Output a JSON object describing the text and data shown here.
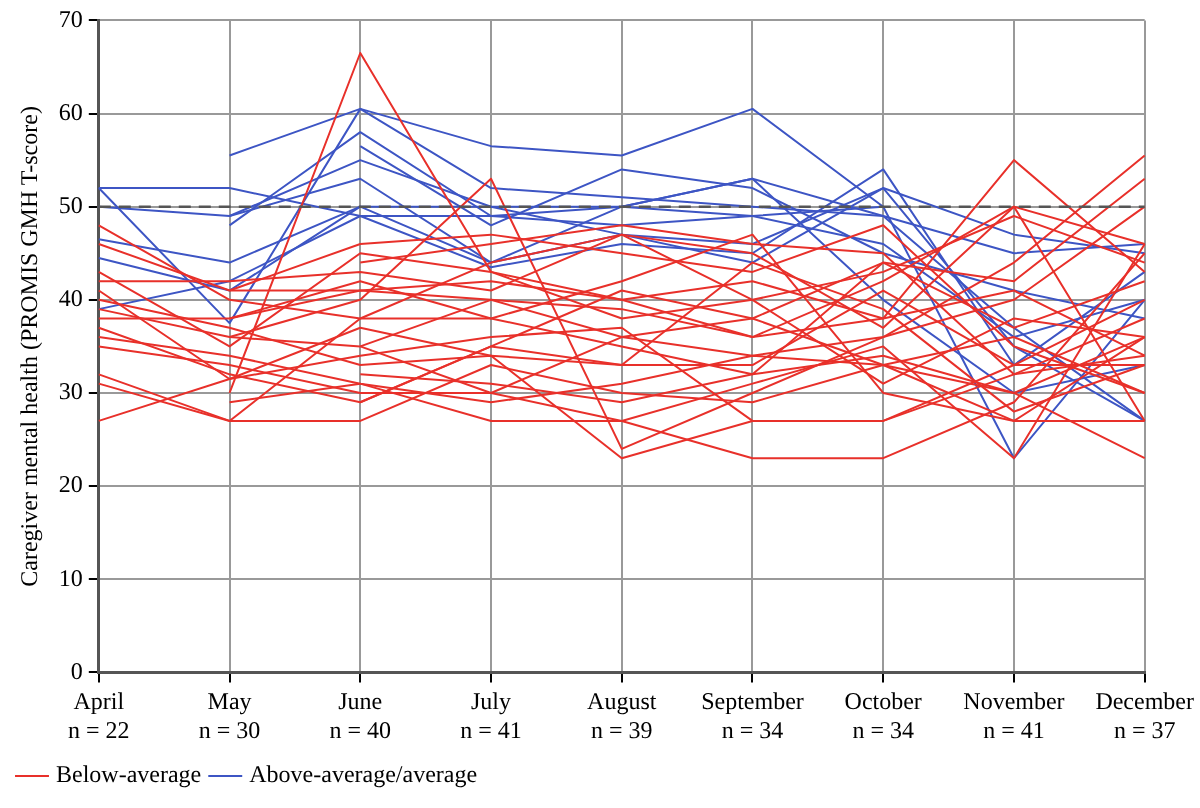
{
  "chart_data": {
    "type": "line",
    "ylabel": "Caregiver mental health (PROMIS GMH T-score)",
    "categories": [
      "April\nn = 22",
      "May\nn = 30",
      "June\nn = 40",
      "July\nn = 41",
      "August\nn = 39",
      "September\nn = 34",
      "October\nn = 34",
      "November\nn = 41",
      "December\nn = 37"
    ],
    "ylim": [
      0,
      70
    ],
    "yticks": [
      0,
      10,
      20,
      30,
      40,
      50,
      60,
      70
    ],
    "grid": true,
    "legend": "bottom left",
    "marker": "none",
    "line_style": "solid",
    "ref_lines": [
      {
        "axis": "y",
        "value": 50,
        "color": "#555555",
        "line_style": "dashed"
      }
    ],
    "series": [
      {
        "name": "Above-average/average",
        "color": "#3d55c4",
        "values": [
          52,
          37.5,
          60.5,
          56.5,
          55.5,
          60.5,
          50,
          null,
          null
        ]
      },
      {
        "color": "#3d55c4",
        "values": [
          null,
          55.5,
          60.5,
          52,
          51,
          50,
          49,
          45,
          46
        ]
      },
      {
        "color": "#3d55c4",
        "values": [
          46.5,
          44,
          50,
          44,
          47,
          46,
          52,
          35,
          27
        ]
      },
      {
        "color": "#3d55c4",
        "values": [
          44.5,
          41,
          50,
          50,
          50,
          49,
          46,
          36,
          40
        ]
      },
      {
        "color": "#3d55c4",
        "values": [
          39,
          42,
          49,
          49,
          50,
          53,
          49,
          37,
          27
        ]
      },
      {
        "color": "#3d55c4",
        "values": [
          null,
          48,
          58,
          49,
          48,
          49,
          50,
          23,
          40
        ]
      },
      {
        "color": "#3d55c4",
        "values": [
          50,
          49,
          53,
          44,
          50,
          53,
          40,
          30,
          33
        ]
      },
      {
        "color": "#3d55c4",
        "values": [
          null,
          49,
          55,
          50,
          47,
          44,
          52,
          47,
          45
        ]
      },
      {
        "color": "#3d55c4",
        "values": [
          null,
          null,
          56.5,
          48,
          54,
          52,
          45,
          41,
          38
        ]
      },
      {
        "color": "#3d55c4",
        "values": [
          52,
          52,
          49,
          43.5,
          46,
          45,
          54,
          33,
          43
        ]
      },
      {
        "name": "Below-average",
        "color": "#e8302a",
        "values": [
          27,
          31.5,
          34,
          36,
          37,
          27,
          27,
          33,
          33
        ]
      },
      {
        "color": "#e8302a",
        "values": [
          32,
          27,
          27,
          33,
          30,
          29,
          33,
          30,
          23
        ]
      },
      {
        "color": "#e8302a",
        "values": [
          41,
          31.5,
          37,
          34,
          23,
          27,
          27,
          32,
          38
        ]
      },
      {
        "color": "#e8302a",
        "values": [
          46,
          41,
          41,
          42,
          40,
          36,
          38,
          55,
          43
        ]
      },
      {
        "color": "#e8302a",
        "values": [
          48,
          40,
          38,
          44,
          47,
          45,
          37,
          50,
          46
        ]
      },
      {
        "color": "#e8302a",
        "values": [
          38,
          38,
          41,
          40,
          36,
          34,
          36,
          40,
          50
        ]
      },
      {
        "color": "#e8302a",
        "values": [
          35,
          33,
          30,
          30,
          27,
          31,
          35,
          23,
          46
        ]
      },
      {
        "color": "#e8302a",
        "values": [
          36,
          34,
          31,
          29,
          31,
          34,
          33,
          27,
          36
        ]
      },
      {
        "color": "#e8302a",
        "values": [
          43,
          35,
          45,
          43,
          38,
          40,
          43,
          49,
          44
        ]
      },
      {
        "color": "#e8302a",
        "values": [
          null,
          30,
          66.5,
          43,
          40,
          42,
          38,
          41,
          34
        ]
      },
      {
        "color": "#e8302a",
        "values": [
          null,
          36,
          40,
          53,
          24,
          30,
          36,
          44,
          55.5
        ]
      },
      {
        "color": "#e8302a",
        "values": [
          40,
          37,
          33,
          34,
          33,
          33,
          41,
          33,
          40
        ]
      },
      {
        "color": "#e8302a",
        "values": [
          39,
          36,
          35,
          30,
          36,
          38,
          33,
          36,
          30
        ]
      },
      {
        "color": "#e8302a",
        "values": [
          31,
          27,
          38,
          38,
          42,
          47,
          30,
          27,
          27
        ]
      },
      {
        "color": "#e8302a",
        "values": [
          42,
          42,
          43,
          41,
          47,
          40,
          31,
          38,
          36
        ]
      },
      {
        "color": "#e8302a",
        "values": [
          null,
          29,
          31,
          27,
          27,
          23,
          23,
          29,
          45
        ]
      },
      {
        "color": "#e8302a",
        "values": [
          null,
          41,
          46,
          47,
          45,
          43,
          48,
          35,
          30
        ]
      },
      {
        "color": "#e8302a",
        "values": [
          37,
          32,
          29,
          35,
          41,
          38,
          44,
          42,
          53
        ]
      },
      {
        "color": "#e8302a",
        "values": [
          null,
          null,
          29,
          35,
          33,
          44,
          39,
          28,
          33
        ]
      },
      {
        "color": "#e8302a",
        "values": [
          null,
          null,
          35,
          40,
          39,
          36,
          42,
          50,
          27
        ]
      },
      {
        "color": "#e8302a",
        "values": [
          null,
          38,
          42,
          38,
          35,
          32,
          44,
          37,
          42
        ]
      },
      {
        "color": "#e8302a",
        "values": [
          null,
          null,
          32,
          31,
          29,
          32,
          34,
          30,
          36
        ]
      },
      {
        "color": "#e8302a",
        "values": [
          null,
          null,
          44,
          46,
          48,
          46,
          45,
          32,
          34
        ]
      }
    ]
  }
}
